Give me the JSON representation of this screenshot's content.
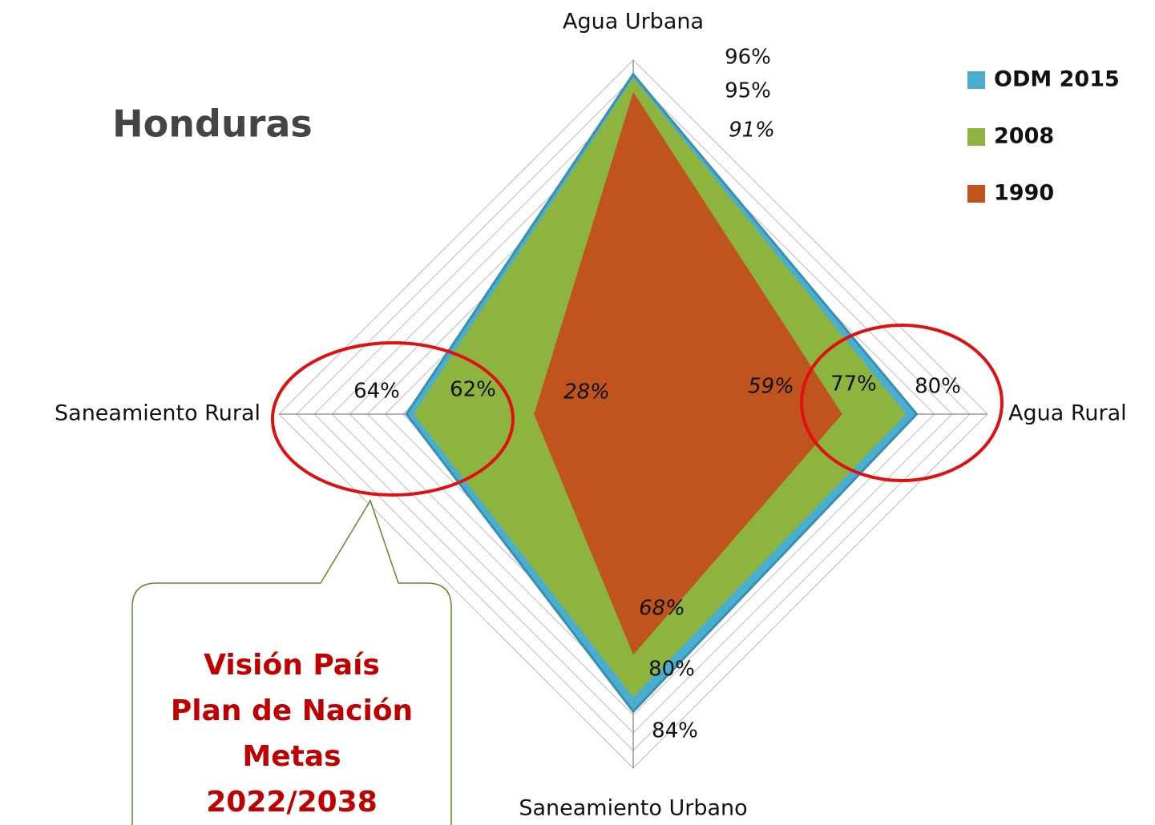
{
  "chart_data": {
    "type": "radar",
    "title": "Honduras",
    "categories": [
      "Agua Urbana",
      "Agua Rural",
      "Saneamiento Urbano",
      "Saneamiento Rural"
    ],
    "series": [
      {
        "name": "ODM 2015",
        "color": "#4aaed0",
        "values": [
          96,
          80,
          84,
          64
        ],
        "value_labels": [
          "96%",
          "80%",
          "84%",
          "64%"
        ]
      },
      {
        "name": "2008",
        "color": "#8db43e",
        "values": [
          95,
          77,
          80,
          62
        ],
        "value_labels": [
          "95%",
          "77%",
          "80%",
          "62%"
        ]
      },
      {
        "name": "1990",
        "color": "#c0541e",
        "values": [
          91,
          59,
          68,
          28
        ],
        "value_labels": [
          "91%",
          "59%",
          "68%",
          "28%"
        ]
      }
    ],
    "rlim": [
      0,
      100
    ],
    "rticks": [
      5,
      10,
      15,
      20,
      25,
      30,
      35,
      40,
      45,
      50,
      55,
      60,
      65,
      70,
      75,
      80,
      85,
      90,
      95,
      100
    ],
    "grid": true,
    "legend": "top-right",
    "callout": [
      "Visión País",
      "Plan de Nación",
      "Metas",
      "2022/2038"
    ]
  }
}
